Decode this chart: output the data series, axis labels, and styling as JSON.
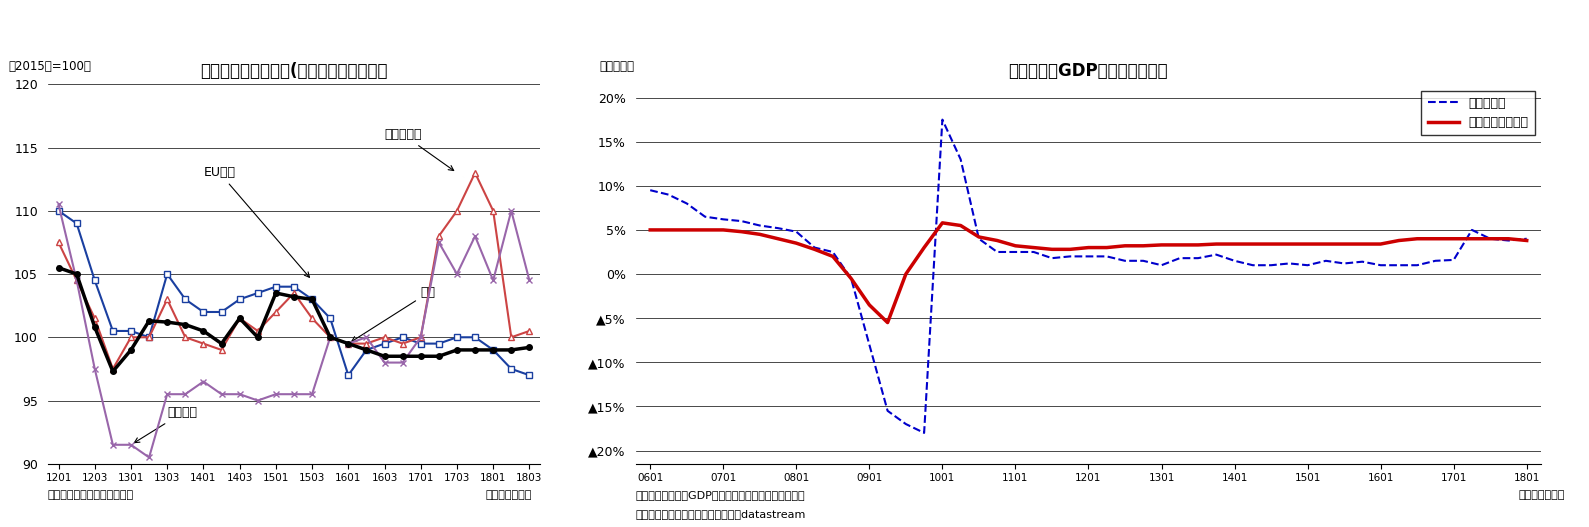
{
  "chart1": {
    "title": "地域別輸出数量指数(季節調整値）の推移",
    "ylabel_top": "（2015年=100）",
    "xlabel_bottom": "（年・四半期）",
    "source": "（資料）財務省「貿易統計」",
    "ylim": [
      90,
      120
    ],
    "yticks": [
      90,
      95,
      100,
      105,
      110,
      115,
      120
    ],
    "xticks_labels": [
      "1201",
      "1203",
      "1301",
      "1303",
      "1401",
      "1403",
      "1501",
      "1503",
      "1601",
      "1603",
      "1701",
      "1703",
      "1801",
      "1803"
    ],
    "zenbu_vals": [
      105.5,
      105.0,
      100.8,
      97.3,
      99.0,
      101.3,
      101.2,
      101.0,
      100.5,
      99.5,
      101.5,
      100.0,
      103.5,
      103.2,
      103.0,
      100.0,
      99.5,
      99.0,
      98.5,
      98.5,
      98.5,
      98.5,
      99.0,
      99.0,
      99.0,
      99.0,
      99.2
    ],
    "eu_vals": [
      110.0,
      109.0,
      104.5,
      100.5,
      100.5,
      100.0,
      105.0,
      103.0,
      102.0,
      102.0,
      103.0,
      103.5,
      104.0,
      104.0,
      103.0,
      101.5,
      97.0,
      99.0,
      99.5,
      100.0,
      99.5,
      99.5,
      100.0,
      100.0,
      99.0,
      97.5,
      97.0
    ],
    "asia_vals": [
      107.5,
      104.5,
      101.5,
      97.5,
      100.0,
      100.0,
      103.0,
      100.0,
      99.5,
      99.0,
      101.5,
      100.5,
      102.0,
      103.5,
      101.5,
      100.0,
      99.5,
      99.5,
      100.0,
      99.5,
      100.0,
      108.0,
      110.0,
      113.0,
      110.0,
      100.0,
      100.5
    ],
    "us_vals": [
      110.5,
      104.5,
      97.5,
      91.5,
      91.5,
      90.5,
      95.5,
      95.5,
      96.5,
      95.5,
      95.5,
      95.0,
      95.5,
      95.5,
      95.5,
      100.0,
      99.5,
      100.0,
      98.0,
      98.0,
      100.0,
      107.5,
      105.0,
      108.0,
      104.5,
      110.0,
      104.5
    ]
  },
  "chart2": {
    "title": "世界の実質GDPと貿易量の関係",
    "ylabel_top": "（前年比）",
    "xlabel_bottom": "（年・四半期）",
    "note1": "（注）世界の実質GDPはニッセイ基礎研究所の試算値",
    "note2": "（出所）オランダ経済政策分析局、datastream",
    "ytick_labels": [
      "▲20%",
      "▲15%",
      "▲10%",
      "▲5%",
      "0%",
      "5%",
      "10%",
      "15%",
      "20%"
    ],
    "ytick_values": [
      -0.2,
      -0.15,
      -0.1,
      -0.05,
      0.0,
      0.05,
      0.1,
      0.15,
      0.2
    ],
    "xticks_labels": [
      "0601",
      "0701",
      "0801",
      "0901",
      "1001",
      "1101",
      "1201",
      "1301",
      "1401",
      "1501",
      "1601",
      "1701",
      "1801"
    ],
    "trade_vals": [
      0.095,
      0.09,
      0.08,
      0.065,
      0.062,
      0.06,
      0.055,
      0.052,
      0.048,
      0.03,
      0.025,
      -0.005,
      -0.08,
      -0.155,
      -0.17,
      -0.18,
      0.175,
      0.13,
      0.04,
      0.025,
      0.025,
      0.025,
      0.018,
      0.02,
      0.02,
      0.02,
      0.015,
      0.015,
      0.01,
      0.018,
      0.018,
      0.022,
      0.015,
      0.01,
      0.01,
      0.012,
      0.01,
      0.015,
      0.012,
      0.014,
      0.01,
      0.01,
      0.01,
      0.015,
      0.016,
      0.05,
      0.04,
      0.038,
      0.04
    ],
    "gdp_vals": [
      0.05,
      0.05,
      0.05,
      0.05,
      0.05,
      0.048,
      0.045,
      0.04,
      0.035,
      0.028,
      0.02,
      -0.005,
      -0.035,
      -0.055,
      0.0,
      0.03,
      0.058,
      0.055,
      0.042,
      0.038,
      0.032,
      0.03,
      0.028,
      0.028,
      0.03,
      0.03,
      0.032,
      0.032,
      0.033,
      0.033,
      0.033,
      0.034,
      0.034,
      0.034,
      0.034,
      0.034,
      0.034,
      0.034,
      0.034,
      0.034,
      0.034,
      0.038,
      0.04,
      0.04,
      0.04,
      0.04,
      0.04,
      0.04,
      0.038
    ]
  }
}
